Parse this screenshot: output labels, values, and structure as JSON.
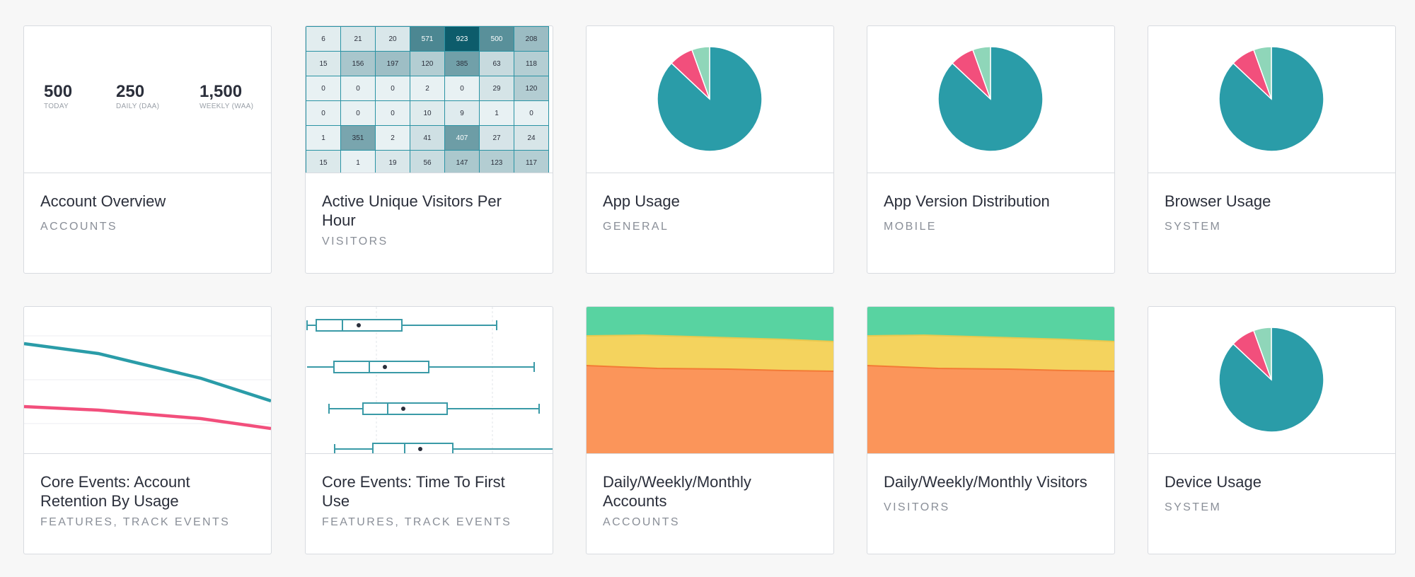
{
  "cards": [
    {
      "title": "Account Overview",
      "tags": "ACCOUNTS"
    },
    {
      "title": "Active Unique Visitors Per Hour",
      "tags": "VISITORS"
    },
    {
      "title": "App Usage",
      "tags": "GENERAL"
    },
    {
      "title": "App Version Distribution",
      "tags": "MOBILE"
    },
    {
      "title": "Browser Usage",
      "tags": "SYSTEM"
    },
    {
      "title": "Core Events: Account Retention By Usage",
      "tags": "FEATURES, TRACK EVENTS"
    },
    {
      "title": "Core Events: Time To First Use",
      "tags": "FEATURES, TRACK EVENTS"
    },
    {
      "title": "Daily/Weekly/Monthly Accounts",
      "tags": "ACCOUNTS"
    },
    {
      "title": "Daily/Weekly/Monthly Visitors",
      "tags": "VISITORS"
    },
    {
      "title": "Device Usage",
      "tags": "SYSTEM"
    }
  ],
  "overview": {
    "metrics": [
      {
        "value": "500",
        "label": "TODAY"
      },
      {
        "value": "250",
        "label": "DAILY (DAA)"
      },
      {
        "value": "1,500",
        "label": "WEEKLY (WAA)"
      }
    ]
  },
  "heatmap": {
    "rows": [
      [
        "6",
        "21",
        "20",
        "571",
        "923",
        "500",
        "208"
      ],
      [
        "15",
        "156",
        "197",
        "120",
        "385",
        "63",
        "118"
      ],
      [
        "0",
        "0",
        "0",
        "2",
        "0",
        "29",
        "120"
      ],
      [
        "0",
        "0",
        "0",
        "10",
        "9",
        "1",
        "0"
      ],
      [
        "1",
        "351",
        "2",
        "41",
        "407",
        "27",
        "24"
      ],
      [
        "15",
        "1",
        "19",
        "56",
        "147",
        "123",
        "117"
      ]
    ],
    "color_dark": "#0d5c6b",
    "color_light": "#e8f1f3"
  },
  "colors": {
    "teal": "#2a9ca8",
    "pink": "#f24f7c",
    "mint": "#8fd6b9",
    "green": "#58d3a1",
    "yellow": "#f4d35e",
    "orange": "#fb955a",
    "line_teal": "#2a9ca8",
    "line_pink": "#f24f7c"
  },
  "pie_slices": [
    {
      "value": 87,
      "color": "#2a9ca8"
    },
    {
      "value": 7.5,
      "color": "#f24f7c"
    },
    {
      "value": 5.5,
      "color": "#8fd6b9"
    }
  ]
}
